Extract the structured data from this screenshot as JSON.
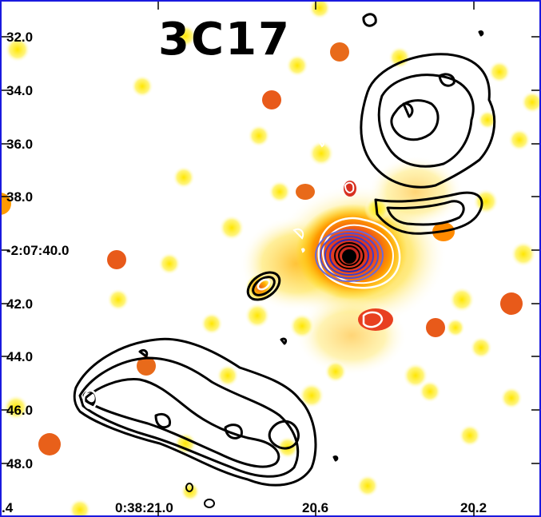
{
  "image": {
    "title": "3C17",
    "y_ticks": [
      "32.0",
      "34.0",
      "36.0",
      "38.0",
      "-2:07:40.0",
      "42.0",
      "44.0",
      "46.0",
      "48.0"
    ],
    "x_ticks": [
      ".4",
      "0:38:21.0",
      "20.6",
      "20.2"
    ],
    "colors": {
      "frame": "#1a1adf",
      "contour_dark": "#000000",
      "contour_light": "#ffffff",
      "core_contours": "#3a3ad0",
      "background": "#ffffff"
    },
    "colormap": [
      "#ffff66",
      "#ffd800",
      "#ff9a00",
      "#e85a1a",
      "#d03020"
    ]
  }
}
